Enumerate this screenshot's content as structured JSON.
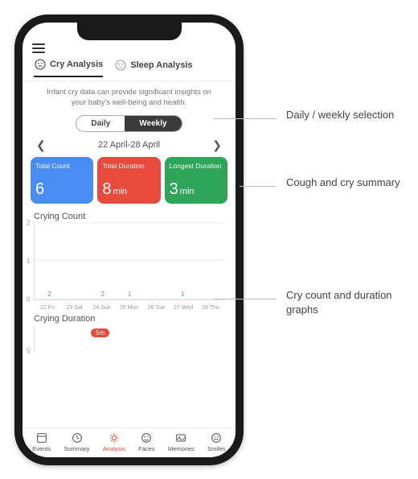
{
  "tabs": {
    "cry": "Cry Analysis",
    "sleep": "Sleep Analysis"
  },
  "intro": "Infant cry data can provide significant insights on your baby's well-being and health.",
  "segmented": {
    "daily": "Daily",
    "weekly": "Weekly",
    "active": "weekly"
  },
  "date_range": "22 April-28 April",
  "summary_cards": {
    "total_count": {
      "label": "Total Count",
      "value": "6",
      "unit": "",
      "bg": "#4a8cf6"
    },
    "total_duration": {
      "label": "Total Duration",
      "value": "8",
      "unit": "min",
      "bg": "#e84b3c"
    },
    "longest": {
      "label": "Longest Duration",
      "value": "3",
      "unit": "min",
      "bg": "#2fa55a"
    }
  },
  "crying_count": {
    "title": "Crying Count",
    "type": "bar",
    "bar_color": "#4a8cf6",
    "ylim": [
      0,
      2
    ],
    "ytick_step": 1,
    "grid_color": "#eeeeee",
    "categories": [
      "22 Fri",
      "23 Sat",
      "24 Sun",
      "25 Mon",
      "26 Tue",
      "27 Wed",
      "28 Thu"
    ],
    "values": [
      2,
      0,
      2,
      1,
      0,
      1,
      0
    ],
    "show_value_on_bar": true
  },
  "crying_duration": {
    "title": "Crying Duration",
    "ylabel_first": "5",
    "badge": {
      "label": "5m",
      "x_index": 2,
      "bg": "#e84b3c"
    }
  },
  "bottom_nav": {
    "items": [
      {
        "key": "events",
        "label": "Events"
      },
      {
        "key": "summary",
        "label": "Summary"
      },
      {
        "key": "analysis",
        "label": "Analysis"
      },
      {
        "key": "faces",
        "label": "Faces"
      },
      {
        "key": "memories",
        "label": "Memories"
      },
      {
        "key": "smiles",
        "label": "Smiles"
      }
    ],
    "active": "analysis"
  },
  "annotations": {
    "a1": "Daily / weekly selection",
    "a2": "Cough and cry summary",
    "a3": "Cry count and duration graphs"
  },
  "colors": {
    "phone_frame": "#1a1a1a",
    "text_muted": "#777"
  }
}
